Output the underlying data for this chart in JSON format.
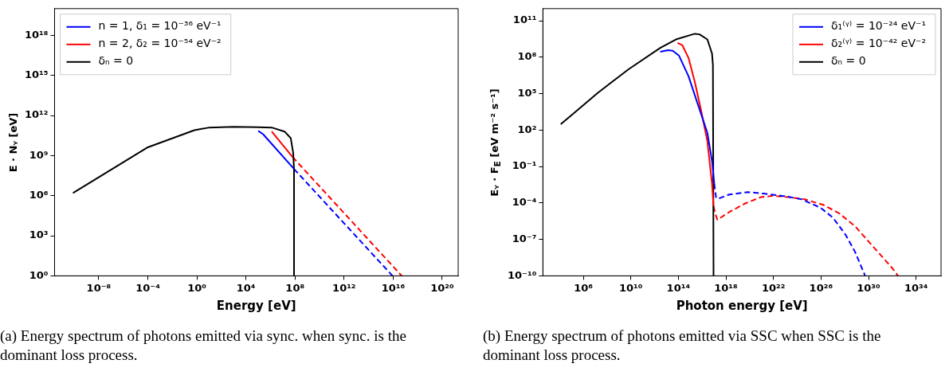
{
  "chart_data": [
    {
      "type": "line",
      "xlabel": "Energy [eV]",
      "ylabel": "E · Nᵧ  [eV]",
      "log": "xy",
      "grid": false,
      "legend": "top left",
      "marker": "none",
      "xlim": [
        2.5e-12,
        2e+21
      ],
      "ylim": [
        1,
        1e+20
      ],
      "xticks": [
        {
          "value": 1e-08,
          "label": "10⁻⁸"
        },
        {
          "value": 0.0001,
          "label": "10⁻⁴"
        },
        {
          "value": 1,
          "label": "10⁰"
        },
        {
          "value": 10000.0,
          "label": "10⁴"
        },
        {
          "value": 100000000.0,
          "label": "10⁸"
        },
        {
          "value": 1000000000000.0,
          "label": "10¹²"
        },
        {
          "value": 1e+16,
          "label": "10¹⁶"
        },
        {
          "value": 1e+20,
          "label": "10²⁰"
        }
      ],
      "yticks": [
        {
          "value": 1,
          "label": "10⁰"
        },
        {
          "value": 1000.0,
          "label": "10³"
        },
        {
          "value": 1000000.0,
          "label": "10⁶"
        },
        {
          "value": 1000000000.0,
          "label": "10⁹"
        },
        {
          "value": 1000000000000.0,
          "label": "10¹²"
        },
        {
          "value": 1000000000000000.0,
          "label": "10¹⁵"
        },
        {
          "value": 1e+18,
          "label": "10¹⁸"
        }
      ],
      "series": [
        {
          "name": "n = 1, δ₁ = 10⁻³⁶ eV⁻¹",
          "color": "#0000ff",
          "line_style": "solid",
          "x": [
            100000.0,
            250000.0,
            83000000.0
          ],
          "values": [
            71000000000.0,
            40000000000.0,
            100000000.0
          ]
        },
        {
          "name": "n = 2, δ₂ = 10⁻⁵⁴ eV⁻²",
          "color": "#ff0000",
          "line_style": "solid",
          "x": [
            1260000.0,
            63000000.0
          ],
          "values": [
            63000000000.0,
            790000000.0
          ]
        },
        {
          "name": "δₙ = 0",
          "color": "#000000",
          "line_style": "solid",
          "x": [
            7.9e-11,
            8.9e-05,
            0.63,
            10,
            1000,
            100000.0,
            1260000.0,
            14100000.0,
            45000000.0,
            71000000.0,
            83000000.0,
            83000000.0
          ],
          "values": [
            1600000.0,
            4000000000.0,
            79000000000.0,
            126000000000.0,
            141000000000.0,
            132000000000.0,
            126000000000.0,
            63000000000.0,
            20000000000.0,
            1600000000.0,
            100000000.0,
            1
          ]
        },
        {
          "color": "#0000ff",
          "line_style": "dashed",
          "x": [
            83000000.0,
            8900000000000000.0
          ],
          "values": [
            100000000.0,
            1
          ]
        },
        {
          "color": "#ff0000",
          "line_style": "dashed",
          "x": [
            63000000.0,
            5e+16
          ],
          "values": [
            790000000.0,
            1
          ]
        }
      ],
      "annotations": [
        "(a) Energy spectrum of photons emitted via sync. when sync. is the dominant loss process."
      ]
    },
    {
      "type": "line",
      "xlabel": "Photon energy [eV]",
      "ylabel": "Eᵧ · F$_{E}$ [eV m⁻² s⁻¹]",
      "log": "xy",
      "grid": false,
      "legend": "top right",
      "marker": "none",
      "xlim": [
        400,
        1.26e+36
      ],
      "ylim": [
        1e-10,
        1000000000000.0
      ],
      "xticks": [
        {
          "value": 1000000.0,
          "label": "10⁶"
        },
        {
          "value": 10000000000.0,
          "label": "10¹⁰"
        },
        {
          "value": 100000000000000.0,
          "label": "10¹⁴"
        },
        {
          "value": 1e+18,
          "label": "10¹⁸"
        },
        {
          "value": 1e+22,
          "label": "10²²"
        },
        {
          "value": 1e+26,
          "label": "10²⁶"
        },
        {
          "value": 1e+30,
          "label": "10³⁰"
        },
        {
          "value": 1e+34,
          "label": "10³⁴"
        }
      ],
      "yticks": [
        {
          "value": 1e-10,
          "label": "10⁻¹⁰"
        },
        {
          "value": 1e-07,
          "label": "10⁻⁷"
        },
        {
          "value": 0.0001,
          "label": "10⁻⁴"
        },
        {
          "value": 0.1,
          "label": "10⁻¹"
        },
        {
          "value": 100,
          "label": "10²"
        },
        {
          "value": 100000.0,
          "label": "10⁵"
        },
        {
          "value": 100000000.0,
          "label": "10⁸"
        },
        {
          "value": 100000000000.0,
          "label": "10¹¹"
        }
      ],
      "series": [
        {
          "name": "δ₁⁽ᵞ⁾ = 10⁻²⁴ eV⁻¹",
          "color": "#0000ff",
          "line_style": "solid",
          "x": [
            3000000000000.0,
            13500000000000.0,
            34000000000000.0,
            115000000000000.0,
            710000000000000.0,
            4400000000000000.0,
            2.75e+16,
            6.8e+16,
            1.05e+17
          ],
          "values": [
            280000000.0,
            380000000.0,
            340000000.0,
            130000000.0,
            2750000.0,
            13000.0,
            60,
            0.28,
            0.0039
          ]
        },
        {
          "name": "δ₂⁽ᵞ⁾ = 10⁻⁴² eV⁻²",
          "color": "#ff0000",
          "line_style": "solid",
          "x": [
            85000000000000.0,
            210000000000000.0,
            710000000000000.0,
            2400000000000000.0,
            8100000000000000.0,
            2.75e+16,
            6.8e+16,
            9.1e+16
          ],
          "values": [
            1500000000.0,
            1000000000.0,
            89000000.0,
            930000.0,
            4400.0,
            12,
            0.0039,
            5.4e-05
          ]
        },
        {
          "name": "δₙ = 0",
          "color": "#000000",
          "line_style": "solid",
          "x": [
            12600.0,
            120000.0,
            15500000.0,
            6800000000.0,
            3000000000000.0,
            62000000000000.0,
            2400000000000000.0,
            6000000000000000.0,
            2.75e+16,
            6.8e+16,
            8.1e+16,
            9.1e+16
          ],
          "values": [
            300,
            1950,
            110000.0,
            10500000.0,
            580000000.0,
            2900000000.0,
            8500000000.0,
            7600000000.0,
            2900000000.0,
            200000000.0,
            23000000.0,
            1e-10
          ]
        },
        {
          "color": "#0000ff",
          "line_style": "dashed",
          "x": [
            1.05e+17,
            1.5e+17,
            2.3e+17,
            1.95e+18,
            7.4e+19,
            1.55e+21,
            1.1e+23,
            2.3e+24,
            8.9e+25,
            1e+27,
            1.15e+28,
            7.1e+28,
            4.5e+29,
            5e+29
          ],
          "values": [
            0.0039,
            0.00026,
            0.000224,
            0.0005,
            0.00078,
            0.00059,
            0.00035,
            0.0002,
            4.1e-05,
            6.3e-06,
            2.5e-07,
            1e-08,
            1.4e-10,
            1e-10
          ]
        },
        {
          "color": "#ff0000",
          "line_style": "dashed",
          "x": [
            9.1e+16,
            1.26e+17,
            1.9e+17,
            1.95e+18,
            4.1e+19,
            8.5e+20,
            9.5e+21,
            2e+23,
            4.3e+24,
            1.6e+26,
            3.4e+27,
            7.1e+28,
            8.1e+29,
            9.3e+30,
            1.05e+32,
            3e+32
          ],
          "values": [
            5.4e-05,
            1.4e-05,
            4.1e-06,
            1.8e-05,
            9.1e-05,
            0.0003,
            0.00039,
            0.0003,
            0.0002,
            6.9e-05,
            1.4e-05,
            1.26e-06,
            8.5e-08,
            5.9e-09,
            4.1e-10,
            1e-10
          ]
        }
      ],
      "annotations": [
        "(b) Energy spectrum of photons emitted via SSC when SSC is the dominant loss process."
      ]
    }
  ]
}
